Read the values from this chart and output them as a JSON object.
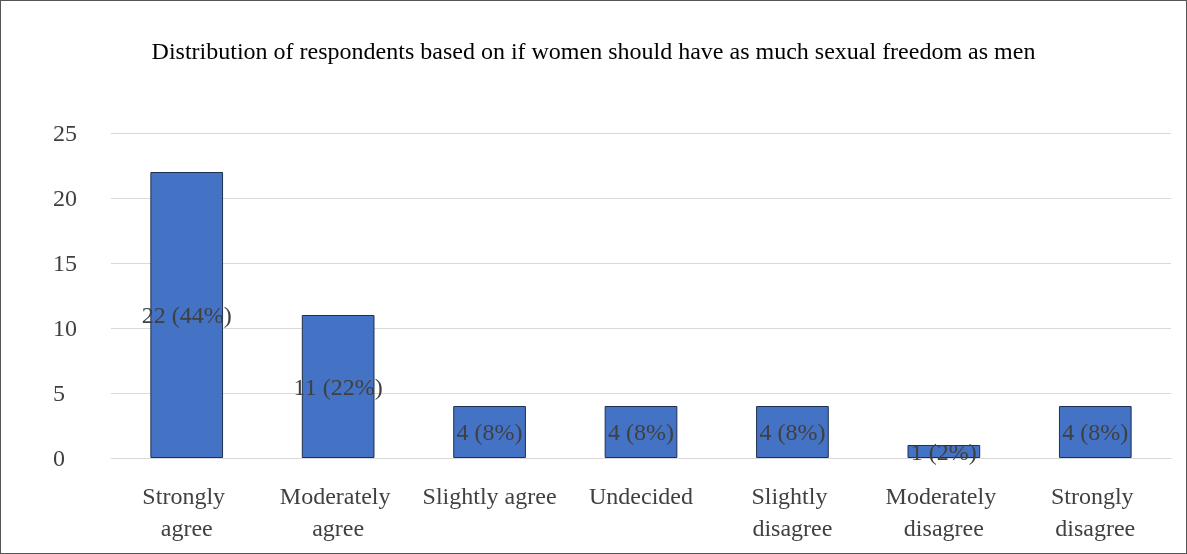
{
  "chart_data": {
    "type": "bar",
    "title": "Distribution of respondents based on if women should have as much sexual freedom as men",
    "categories": [
      "Strongly agree",
      "Moderately agree",
      "Slightly agree",
      "Undecided",
      "Slightly disagree",
      "Moderately disagree",
      "Strongly disagree"
    ],
    "values": [
      22,
      11,
      4,
      4,
      4,
      1,
      4
    ],
    "value_labels": [
      "22 (44%)",
      "11 (22%)",
      "4 (8%)",
      "4 (8%)",
      "4 (8%)",
      "1 (2%)",
      "4 (8%)"
    ],
    "color": "#4472c4",
    "ylim": [
      0,
      25
    ],
    "yticks": [
      0,
      5,
      10,
      15,
      20,
      25
    ],
    "grid": "y"
  }
}
